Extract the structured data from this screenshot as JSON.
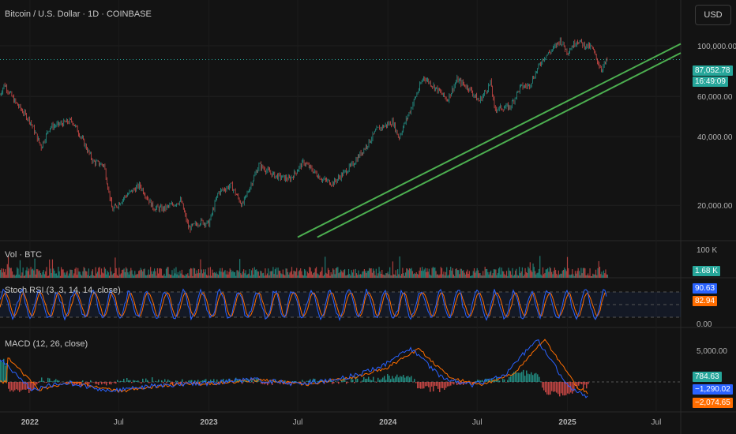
{
  "header": {
    "title": "Bitcoin / U.S. Dollar · 1D · COINBASE",
    "currency_button": "USD"
  },
  "price_pane": {
    "last_price": "87,052.78",
    "countdown": "16:49:09",
    "price_color": "#26a69a",
    "trendline_color": "#4caf50"
  },
  "volume_pane": {
    "title": "Vol · BTC",
    "last_value": "1.68 K",
    "axis_label": "100 K"
  },
  "stoch_pane": {
    "title": "Stoch RSI (3, 3, 14, 14, close)",
    "k_value": "90.63",
    "d_value": "82.94",
    "k_color": "#2962ff",
    "d_color": "#ff6d00",
    "axis_label": "0.00"
  },
  "macd_pane": {
    "title": "MACD (12, 26, close)",
    "hist_value": "784.63",
    "macd_value": "−1,290.02",
    "signal_value": "−2,074.65",
    "axis_label": "5,000.00"
  },
  "chart_data": {
    "type": "line",
    "y_axis_ticks": [
      "100,000.00",
      "60,000.00",
      "40,000.00",
      "20,000.00"
    ],
    "x_axis_ticks": [
      "2022",
      "Jul",
      "2023",
      "Jul",
      "2024",
      "Jul",
      "2025",
      "Jul"
    ],
    "x_tick_dates": [
      "2022-01-01",
      "2022-07-01",
      "2023-01-01",
      "2023-07-01",
      "2024-01-01",
      "2024-07-01",
      "2025-01-01",
      "2025-07-01"
    ],
    "x_range": [
      "2021-11-01",
      "2025-08-20"
    ],
    "y_scale": "log",
    "ylim": [
      14000,
      125000
    ],
    "series": [
      {
        "x": [
          "2021-11-01",
          "2021-11-10",
          "2021-12-01",
          "2022-01-01",
          "2022-01-24",
          "2022-02-10",
          "2022-03-28",
          "2022-04-15",
          "2022-05-10",
          "2022-06-01",
          "2022-06-18",
          "2022-07-15",
          "2022-08-13",
          "2022-09-10",
          "2022-10-01",
          "2022-11-05",
          "2022-11-21",
          "2022-12-15",
          "2023-01-01",
          "2023-01-20",
          "2023-02-15",
          "2023-03-10",
          "2023-04-13",
          "2023-05-15",
          "2023-06-15",
          "2023-07-13",
          "2023-08-20",
          "2023-09-11",
          "2023-10-20",
          "2023-11-20",
          "2023-12-10",
          "2024-01-11",
          "2024-01-23",
          "2024-02-15",
          "2024-03-14",
          "2024-04-15",
          "2024-05-01",
          "2024-05-21",
          "2024-06-15",
          "2024-07-05",
          "2024-07-29",
          "2024-08-05",
          "2024-09-06",
          "2024-09-27",
          "2024-10-15",
          "2024-11-12",
          "2024-12-05",
          "2024-12-17",
          "2025-01-01",
          "2025-01-21",
          "2025-02-03",
          "2025-02-20",
          "2025-03-03",
          "2025-03-11",
          "2025-03-24"
        ],
        "y": [
          61000,
          68000,
          57000,
          47000,
          36000,
          44000,
          47000,
          40000,
          31000,
          30000,
          19000,
          22000,
          24500,
          19500,
          19300,
          21000,
          15800,
          17000,
          16600,
          22800,
          24500,
          20000,
          30000,
          27000,
          26000,
          31000,
          26000,
          25000,
          30000,
          37000,
          43000,
          46500,
          39500,
          52000,
          73000,
          63000,
          58000,
          71000,
          65000,
          57000,
          69000,
          53000,
          54000,
          66000,
          67000,
          88000,
          98000,
          106000,
          94000,
          106000,
          101000,
          98000,
          86000,
          79000,
          87052
        ]
      }
    ],
    "trendlines": [
      {
        "name": "upper",
        "points": [
          [
            "2023-07-01",
            14500
          ],
          [
            "2025-08-20",
            102000
          ]
        ]
      },
      {
        "name": "lower",
        "points": [
          [
            "2023-08-10",
            14500
          ],
          [
            "2025-08-20",
            93000
          ]
        ]
      }
    ]
  }
}
